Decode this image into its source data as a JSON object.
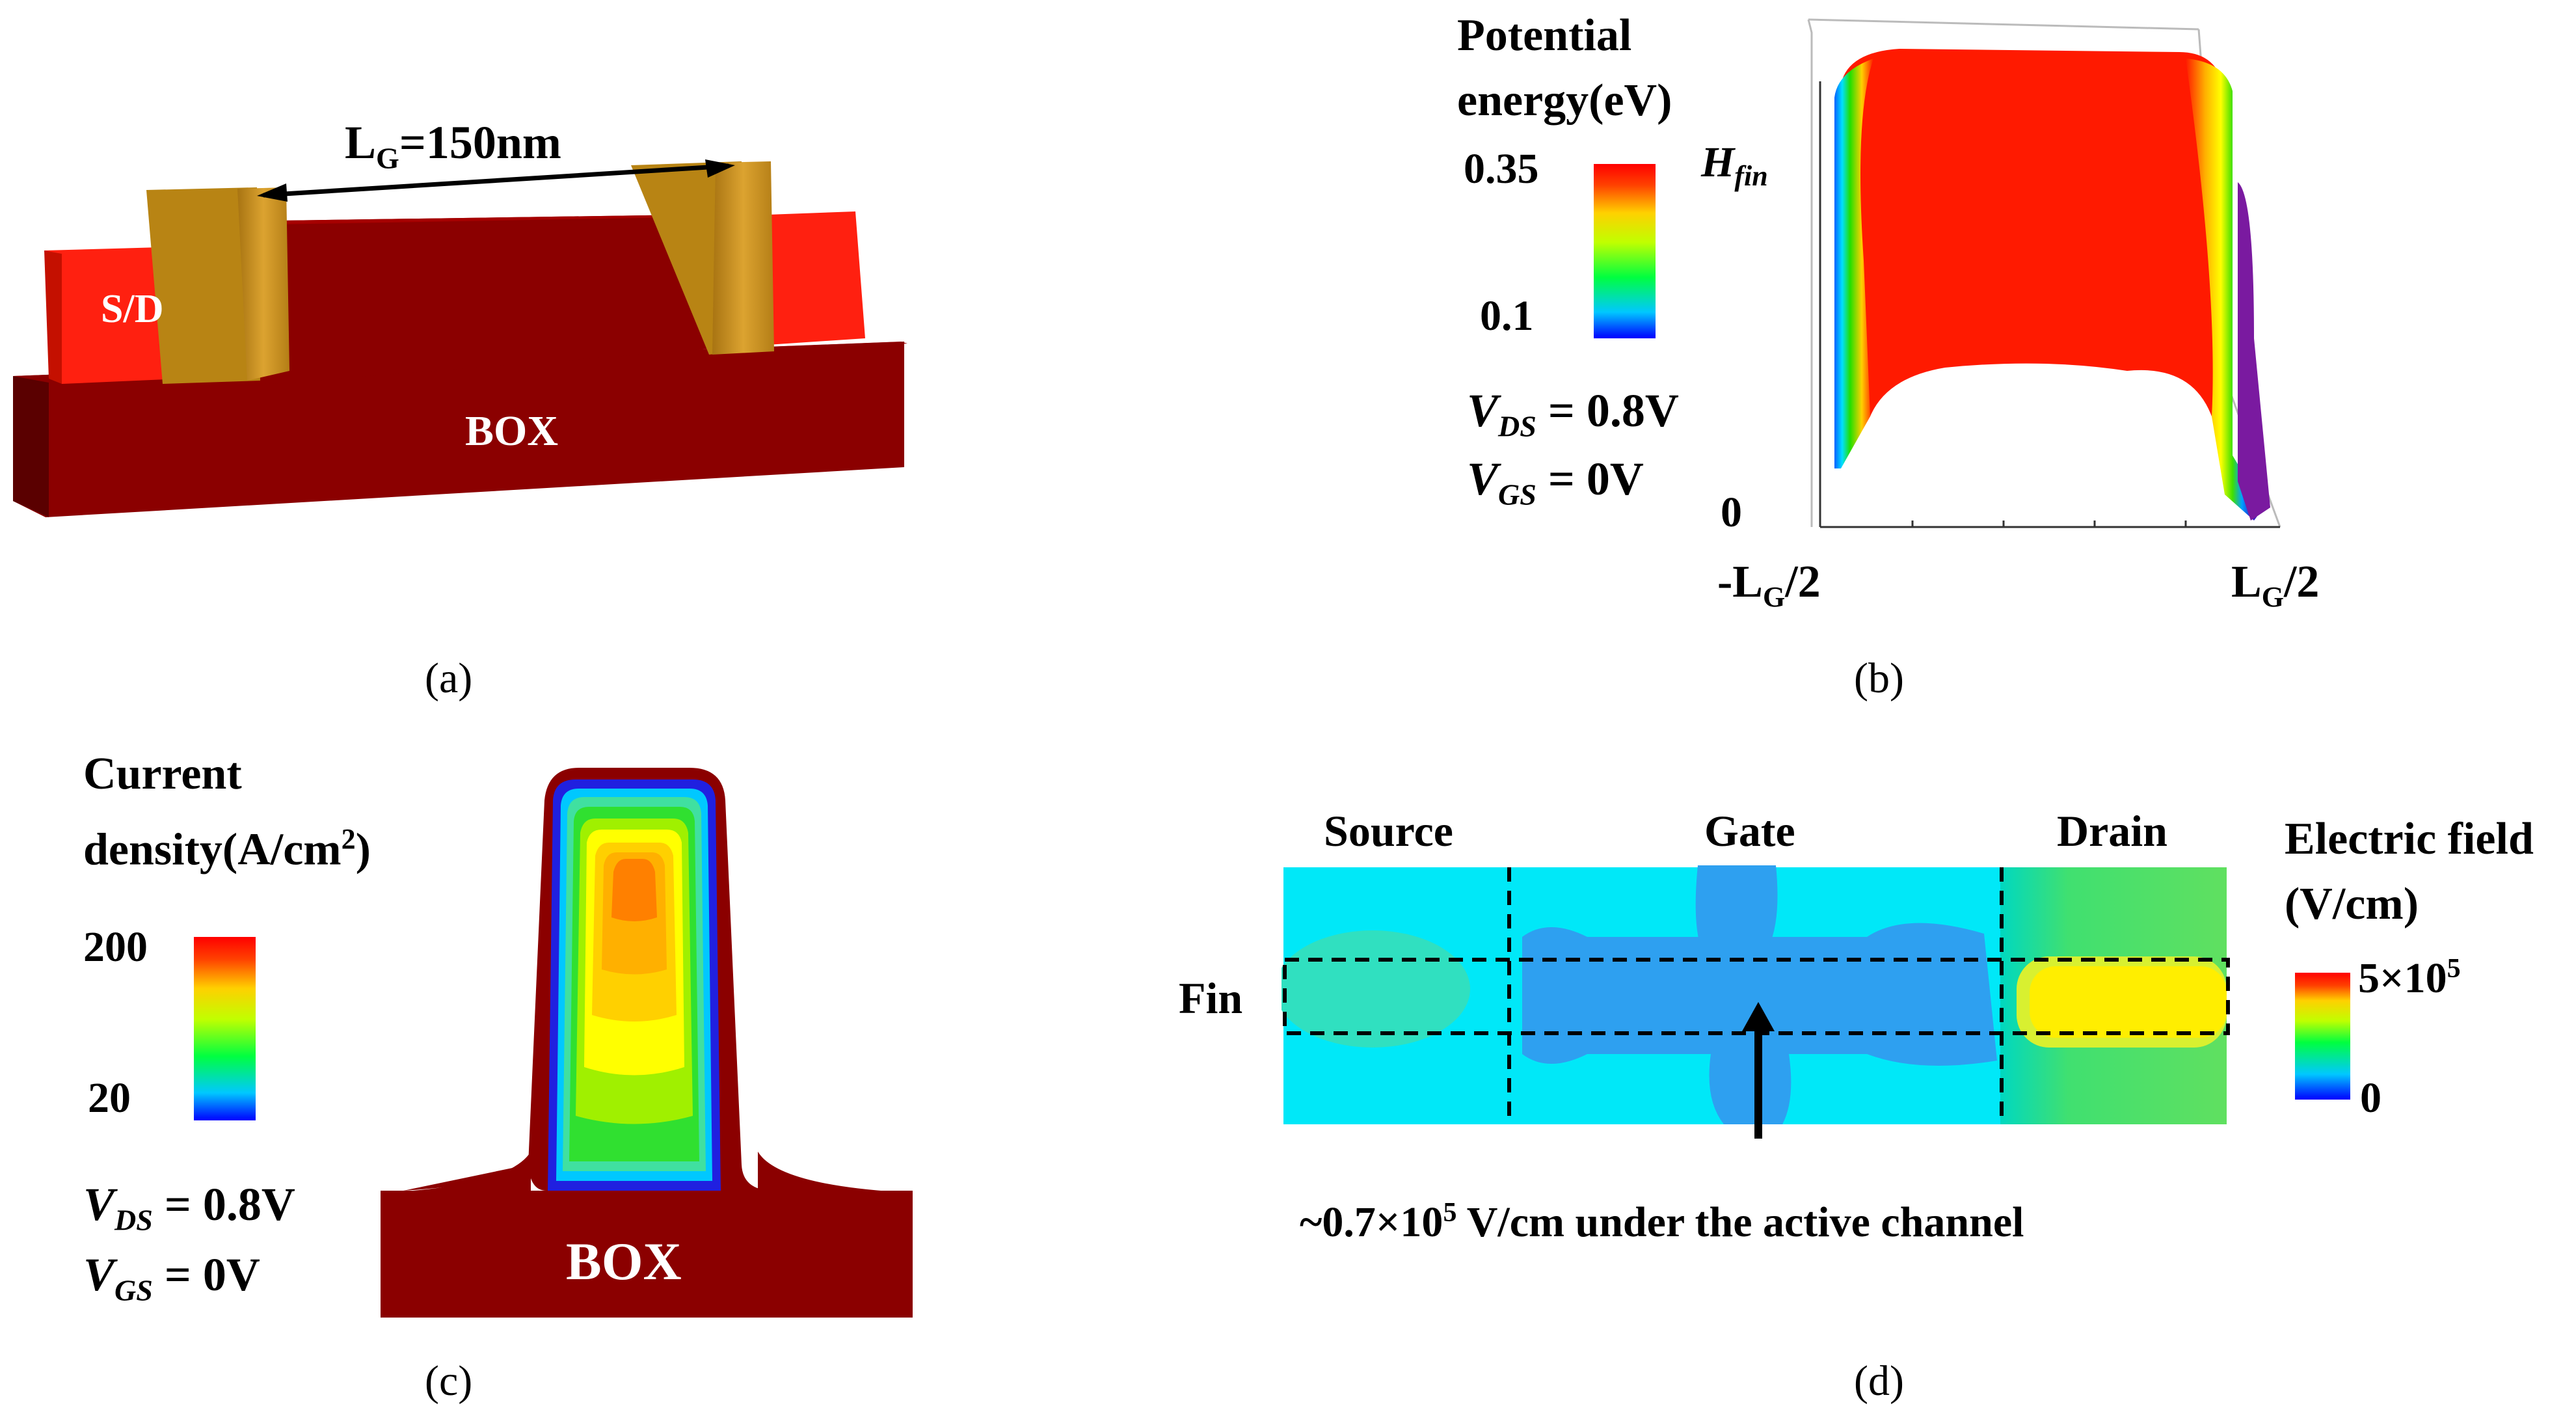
{
  "panel_a": {
    "gate_length_label": "L",
    "gate_length_sub": "G",
    "gate_length_value": "=150nm",
    "sd_label": "S/D",
    "box_label": "BOX",
    "caption": "(a)"
  },
  "panel_b": {
    "legend_title_line1": "Potential",
    "legend_title_line2": "energy(eV)",
    "legend_max": "0.35",
    "legend_min": "0.1",
    "vds_sub": "DS",
    "vds_value": " = 0.8V",
    "vgs_sub": "GS",
    "vgs_value": " = 0V",
    "z_top_label": "H",
    "z_top_sub": "fin",
    "z_zero_label": "0",
    "x_left_label": "-L",
    "x_left_sub": "G",
    "x_left_tail": "/2",
    "x_right_label": "L",
    "x_right_sub": "G",
    "x_right_tail": "/2",
    "caption": "(b)"
  },
  "panel_c": {
    "legend_title_line1": "Current",
    "legend_title_line2": "density(A/cm",
    "legend_title_sup": "2",
    "legend_title_tail": ")",
    "legend_max": "200",
    "legend_min": "20",
    "vds_sub": "DS",
    "vds_value": " = 0.8V",
    "vgs_sub": "GS",
    "vgs_value": " = 0V",
    "box_label": "BOX",
    "caption": "(c)"
  },
  "panel_d": {
    "region_source": "Source",
    "region_gate": "Gate",
    "region_drain": "Drain",
    "fin_label": "Fin",
    "legend_title_line1": "Electric field",
    "legend_title_line2": "(V/cm)",
    "legend_max_base": "5×10",
    "legend_max_exp": "5",
    "legend_min": "0",
    "annotation_pre": "~0.7×10",
    "annotation_exp": "5",
    "annotation_post": " V/cm under the active channel",
    "caption": "(d)"
  },
  "colors": {
    "box_dark_red": "#8b0000",
    "sd_red": "#ff2010",
    "gate_gold": "#c89218",
    "rainbow": [
      "#0000ff",
      "#00ffff",
      "#00ff00",
      "#ffff00",
      "#ff0000"
    ]
  }
}
